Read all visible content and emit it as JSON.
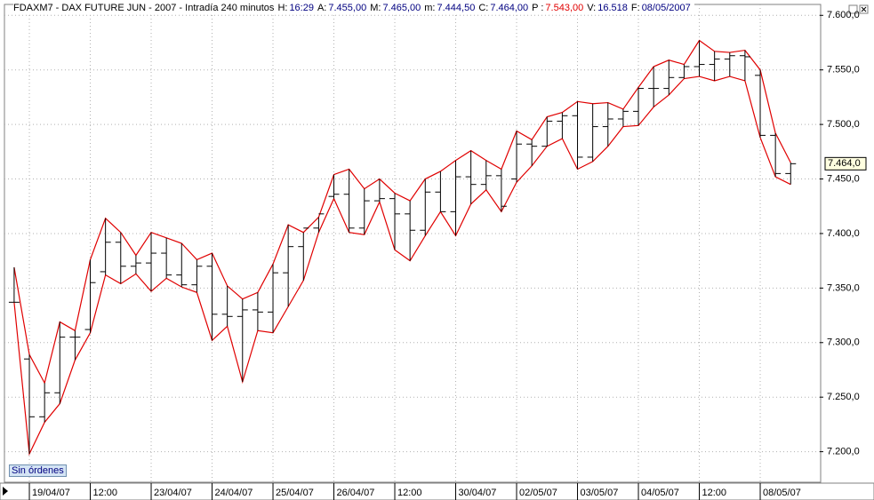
{
  "header": {
    "instrument": "FDAXM7 - DAX FUTURE  JUN - 2007 - Intradía 240 minutos",
    "fields": [
      {
        "label": "H:",
        "value": "16:29",
        "color": "#000080"
      },
      {
        "label": "A:",
        "value": "7.455,00",
        "color": "#000080"
      },
      {
        "label": "M:",
        "value": "7.465,00",
        "color": "#000080"
      },
      {
        "label": "m:",
        "value": "7.444,50",
        "color": "#000080"
      },
      {
        "label": "C:",
        "value": "7.464,00",
        "color": "#000080"
      },
      {
        "label": "P :",
        "value": "7.543,00",
        "color": "#e00000"
      },
      {
        "label": "V:",
        "value": "16.518",
        "color": "#000080"
      },
      {
        "label": "F:",
        "value": "08/05/2007",
        "color": "#000080"
      }
    ]
  },
  "orders_button": "Sin órdenes",
  "chart_data": {
    "type": "ohlc",
    "categories": [
      null,
      "19/04/07",
      null,
      null,
      null,
      "12:00",
      null,
      null,
      null,
      "23/04/07",
      null,
      null,
      null,
      "24/04/07",
      null,
      null,
      null,
      "25/04/07",
      null,
      null,
      null,
      "26/04/07",
      null,
      null,
      null,
      "12:00",
      null,
      null,
      null,
      "30/04/07",
      null,
      null,
      null,
      "02/05/07",
      null,
      null,
      null,
      "03/05/07",
      null,
      null,
      null,
      "04/05/07",
      null,
      null,
      null,
      "12:00",
      null,
      null,
      null,
      "08/05/07",
      null,
      null
    ],
    "open": [
      7337,
      7285,
      7232,
      7254,
      7305,
      7312,
      7365,
      7392,
      7370,
      7373,
      7382,
      7362,
      7353,
      7370,
      7326,
      7324,
      7330,
      7328,
      7364,
      7388,
      7405,
      7434,
      7436,
      7405,
      7430,
      7432,
      7418,
      7403,
      7438,
      7420,
      7452,
      7445,
      7453,
      7450,
      7482,
      7480,
      7503,
      7508,
      7470,
      7498,
      7505,
      7512,
      7533,
      7533,
      7543,
      7553,
      7555,
      7560,
      7563,
      7545,
      7490,
      7455
    ],
    "high": [
      7369,
      7289,
      7263,
      7319,
      7311,
      7376,
      7414,
      7401,
      7380,
      7401,
      7396,
      7391,
      7376,
      7382,
      7352,
      7340,
      7346,
      7372,
      7408,
      7401,
      7415,
      7454,
      7459,
      7441,
      7450,
      7437,
      7430,
      7450,
      7457,
      7467,
      7476,
      7467,
      7459,
      7494,
      7486,
      7507,
      7511,
      7521,
      7519,
      7520,
      7514,
      7534,
      7553,
      7559,
      7555,
      7577,
      7567,
      7566,
      7568,
      7550,
      7492,
      7465
    ],
    "low": [
      7337,
      7198,
      7227,
      7244,
      7284,
      7309,
      7362,
      7354,
      7363,
      7347,
      7359,
      7351,
      7346,
      7302,
      7315,
      7264,
      7311,
      7309,
      7333,
      7357,
      7401,
      7432,
      7401,
      7399,
      7429,
      7385,
      7375,
      7398,
      7420,
      7398,
      7427,
      7440,
      7420,
      7447,
      7462,
      7480,
      7487,
      7459,
      7466,
      7480,
      7498,
      7499,
      7516,
      7527,
      7542,
      7544,
      7540,
      7544,
      7540,
      7488,
      7452,
      7445
    ],
    "close": [
      7337,
      7232,
      7254,
      7305,
      7305,
      7355,
      7392,
      7370,
      7373,
      7382,
      7362,
      7353,
      7370,
      7326,
      7324,
      7330,
      7328,
      7364,
      7388,
      7405,
      7418,
      7436,
      7405,
      7430,
      7432,
      7418,
      7403,
      7438,
      7420,
      7452,
      7445,
      7453,
      7425,
      7482,
      7480,
      7503,
      7508,
      7470,
      7498,
      7505,
      7512,
      7533,
      7533,
      7543,
      7553,
      7555,
      7560,
      7563,
      7562,
      7490,
      7455,
      7464
    ],
    "last_price": {
      "value": 7464,
      "label": "7.464,0"
    },
    "bar_color": "#000000",
    "envelope_color": "#e00000",
    "grid": true,
    "ylim": [
      7172,
      7610
    ],
    "yticks": [
      {
        "value": 7200,
        "label": "7.200,0"
      },
      {
        "value": 7250,
        "label": "7.250,0"
      },
      {
        "value": 7300,
        "label": "7.300,0"
      },
      {
        "value": 7350,
        "label": "7.350,0"
      },
      {
        "value": 7400,
        "label": "7.400,0"
      },
      {
        "value": 7450,
        "label": "7.450,0"
      },
      {
        "value": 7500,
        "label": "7.500,0"
      },
      {
        "value": 7550,
        "label": "7.550,0"
      },
      {
        "value": 7600,
        "label": "7.600,0"
      }
    ]
  }
}
